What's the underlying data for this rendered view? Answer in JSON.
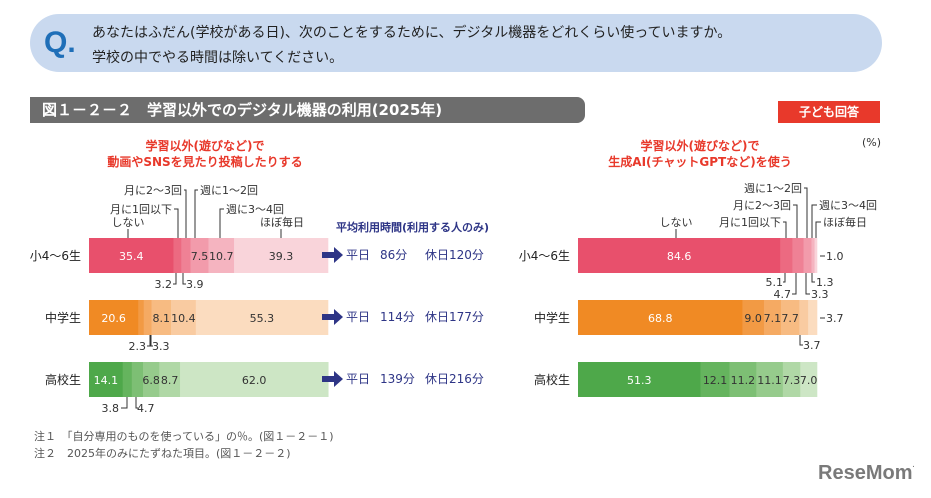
{
  "question": {
    "mark": "Q.",
    "line1": "あなたはふだん(学校がある日)、次のことをするために、デジタル機器をどれくらい使っていますか。",
    "line2": "学校の中でやる時間は除いてください。"
  },
  "figure_title": "図１－２－２　学習以外でのデジタル機器の利用(2025年)",
  "badge": "子ども回答",
  "unit": "(%)",
  "notes": [
    "注１　「自分専用のものを使っている」の％。(図１－２－１)",
    "注２　2025年のみにたずねた項目。(図１－２－２)"
  ],
  "logo": "ReseMom",
  "avg_time_header": "平均利用時間(利用する人のみ)",
  "avg_times": [
    {
      "weekday_label": "平日",
      "weekday": "86分",
      "holiday": "休日120分"
    },
    {
      "weekday_label": "平日",
      "weekday": "114分",
      "holiday": "休日177分"
    },
    {
      "weekday_label": "平日",
      "weekday": "139分",
      "holiday": "休日216分"
    }
  ],
  "chart_data": [
    {
      "type": "stacked-bar-horizontal",
      "title_line1": "学習以外(遊びなど)で",
      "title_line2": "動画やSNSを見たり投稿したりする",
      "categories": [
        "小4～6生",
        "中学生",
        "高校生"
      ],
      "series": [
        {
          "name": "しない",
          "values": [
            35.4,
            20.6,
            14.1
          ]
        },
        {
          "name": "月に1回以下",
          "values": [
            3.2,
            2.3,
            3.8
          ]
        },
        {
          "name": "月に2～3回",
          "values": [
            3.9,
            3.3,
            4.7
          ]
        },
        {
          "name": "週に1～2回",
          "values": [
            7.5,
            8.1,
            6.8
          ]
        },
        {
          "name": "週に3～4回",
          "values": [
            10.7,
            10.4,
            8.7
          ]
        },
        {
          "name": "ほぼ毎日",
          "values": [
            39.3,
            55.3,
            62.0
          ]
        }
      ],
      "xlim": [
        0,
        100
      ]
    },
    {
      "type": "stacked-bar-horizontal",
      "title_line1": "学習以外(遊びなど)で",
      "title_line2": "生成AI(チャットGPTなど)を使う",
      "categories": [
        "小4～6生",
        "中学生",
        "高校生"
      ],
      "series": [
        {
          "name": "しない",
          "values": [
            84.6,
            68.8,
            51.3
          ]
        },
        {
          "name": "月に1回以下",
          "values": [
            5.1,
            9.0,
            12.1
          ]
        },
        {
          "name": "月に2～3回",
          "values": [
            4.7,
            7.1,
            11.2
          ]
        },
        {
          "name": "週に1～2回",
          "values": [
            3.3,
            7.7,
            11.1
          ]
        },
        {
          "name": "週に3～4回",
          "values": [
            1.3,
            3.7,
            7.3
          ]
        },
        {
          "name": "ほぼ毎日",
          "values": [
            1.0,
            3.7,
            7.0
          ]
        }
      ],
      "xlim": [
        0,
        100
      ]
    }
  ],
  "colors": {
    "rows": [
      [
        "#e8506c",
        "#ec6a81",
        "#ef8195",
        "#f29bab",
        "#f5b4c0",
        "#f9d4da"
      ],
      [
        "#f08a24",
        "#f29a44",
        "#f5aa63",
        "#f7bb82",
        "#f9cba1",
        "#fbdcbf"
      ],
      [
        "#4ea84a",
        "#65b45e",
        "#7dbf74",
        "#96cb8c",
        "#b0d8a6",
        "#cde6c5"
      ]
    ],
    "accent_red": "#e8392b",
    "navy": "#2e3586"
  }
}
